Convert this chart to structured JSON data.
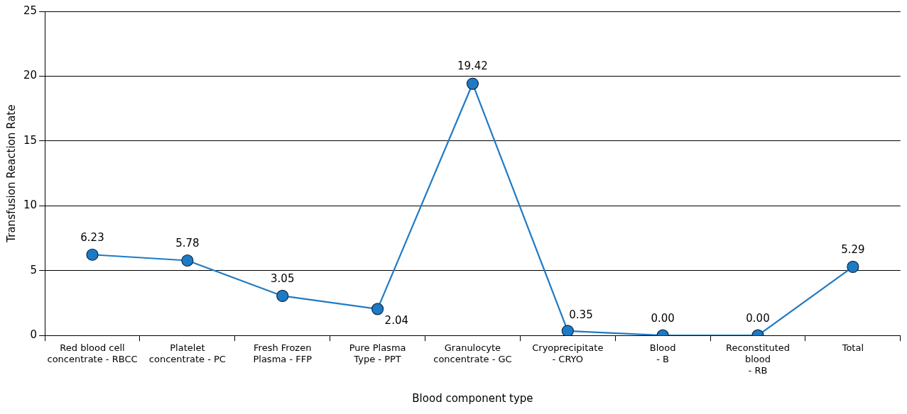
{
  "chart_data": {
    "type": "line",
    "xlabel": "Blood component type",
    "ylabel": "Transfusion Reaction Rate",
    "categories": [
      "Red blood cell\nconcentrate - RBCC",
      "Platelet\nconcentrate - PC",
      "Fresh Frozen\nPlasma - FFP",
      "Pure Plasma\nType - PPT",
      "Granulocyte\nconcentrate - GC",
      "Cryoprecipitate\n- CRYO",
      "Blood\n- B",
      "Reconstituted\nblood\n- RB",
      "Total"
    ],
    "series": [
      {
        "color": "#1f7ac4",
        "values": [
          6.23,
          5.78,
          3.05,
          2.04,
          19.42,
          0.35,
          0.0,
          0.0,
          5.29
        ],
        "value_labels": [
          "6.23",
          "5.78",
          "3.05",
          "2.04",
          "19.42",
          "0.35",
          "0.00",
          "0.00",
          "5.29"
        ]
      }
    ],
    "ylim": [
      0,
      25
    ],
    "yticks": [
      0,
      5,
      10,
      15,
      20,
      25
    ],
    "grid": "y",
    "legend": false,
    "marker": "circle",
    "line_style": "solid"
  }
}
